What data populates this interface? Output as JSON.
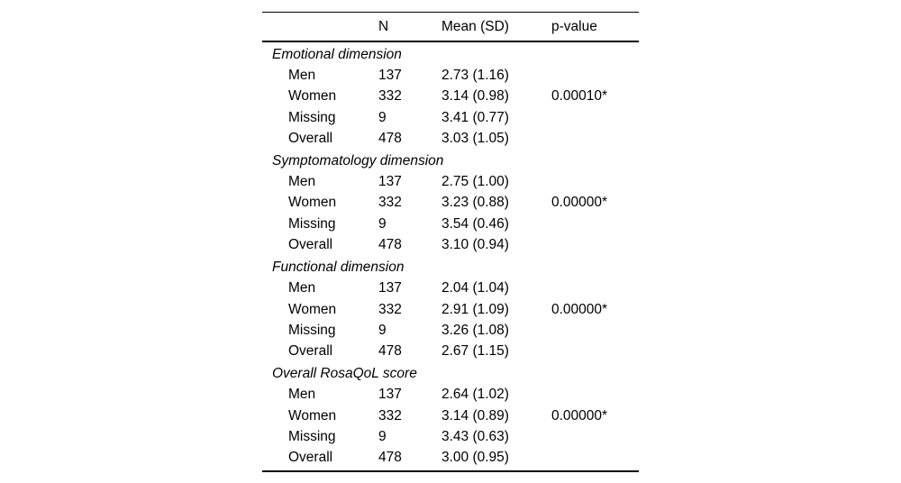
{
  "colors": {
    "background": "#ffffff",
    "text": "#000000",
    "rule": "#000000"
  },
  "table": {
    "columns": [
      "",
      "N",
      "Mean (SD)",
      "p-value"
    ],
    "sections": [
      {
        "title": "Emotional dimension",
        "rows": [
          {
            "label": "Men",
            "n": "137",
            "mean_sd": "2.73 (1.16)",
            "p_value": ""
          },
          {
            "label": "Women",
            "n": "332",
            "mean_sd": "3.14 (0.98)",
            "p_value": "0.00010*"
          },
          {
            "label": "Missing",
            "n": "9",
            "mean_sd": "3.41 (0.77)",
            "p_value": ""
          },
          {
            "label": "Overall",
            "n": "478",
            "mean_sd": "3.03 (1.05)",
            "p_value": ""
          }
        ]
      },
      {
        "title": "Symptomatology dimension",
        "rows": [
          {
            "label": "Men",
            "n": "137",
            "mean_sd": "2.75 (1.00)",
            "p_value": ""
          },
          {
            "label": "Women",
            "n": "332",
            "mean_sd": "3.23 (0.88)",
            "p_value": "0.00000*"
          },
          {
            "label": "Missing",
            "n": "9",
            "mean_sd": "3.54 (0.46)",
            "p_value": ""
          },
          {
            "label": "Overall",
            "n": "478",
            "mean_sd": "3.10 (0.94)",
            "p_value": ""
          }
        ]
      },
      {
        "title": "Functional dimension",
        "rows": [
          {
            "label": "Men",
            "n": "137",
            "mean_sd": "2.04 (1.04)",
            "p_value": ""
          },
          {
            "label": "Women",
            "n": "332",
            "mean_sd": "2.91 (1.09)",
            "p_value": "0.00000*"
          },
          {
            "label": "Missing",
            "n": "9",
            "mean_sd": "3.26 (1.08)",
            "p_value": ""
          },
          {
            "label": "Overall",
            "n": "478",
            "mean_sd": "2.67 (1.15)",
            "p_value": ""
          }
        ]
      },
      {
        "title": "Overall RosaQoL score",
        "rows": [
          {
            "label": "Men",
            "n": "137",
            "mean_sd": "2.64 (1.02)",
            "p_value": ""
          },
          {
            "label": "Women",
            "n": "332",
            "mean_sd": "3.14 (0.89)",
            "p_value": "0.00000*"
          },
          {
            "label": "Missing",
            "n": "9",
            "mean_sd": "3.43 (0.63)",
            "p_value": ""
          },
          {
            "label": "Overall",
            "n": "478",
            "mean_sd": "3.00 (0.95)",
            "p_value": ""
          }
        ]
      }
    ]
  }
}
